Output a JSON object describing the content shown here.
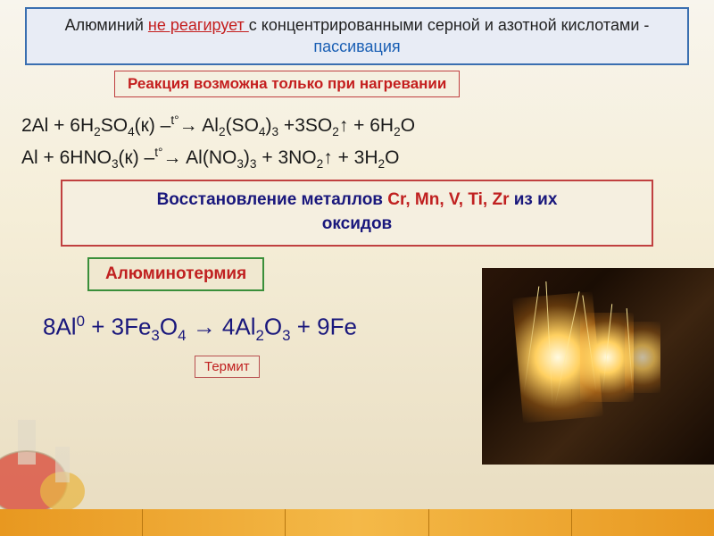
{
  "title_box": {
    "border_color": "#3a6fb0",
    "bg_color": "#e8ecf5",
    "text_color": "#222222",
    "prefix": "Алюминий ",
    "highlight": "не реагирует ",
    "highlight_color": "#c41e1e",
    "mid": "с концентрированными серной и азотной кислотами - ",
    "suffix": "пассивация",
    "suffix_color": "#1a5fb4"
  },
  "sub_box": {
    "border_color": "#c04040",
    "bg_color": "#f5f0e0",
    "text_color": "#c41e1e",
    "text": "Реакция возможна только при нагревании"
  },
  "eq1": {
    "color": "#1a1a1a",
    "text_html": "2Al + 6H<sub>2</sub>SO<sub>4</sub>(к) –<sup>t°</sup>→ Al<sub>2</sub>(SO<sub>4</sub>)<sub>3</sub> +3SO<sub>2</sub>↑ + 6H<sub>2</sub>O"
  },
  "eq2": {
    "color": "#1a1a1a",
    "text_html": "Al + 6HNO<sub>3</sub>(к) –<sup>t°</sup>→  Al(NO<sub>3</sub>)<sub>3</sub> + 3NO<sub>2</sub>↑ + 3H<sub>2</sub>O"
  },
  "mid_box": {
    "border_color": "#c04040",
    "bg_color": "#f5efe0",
    "line1_prefix": "Восстановление металлов ",
    "line1_prefix_color": "#19177c",
    "metals": "Cr, Mn, V, Ti, Zr",
    "metals_color": "#c02020",
    "line1_suffix": " из их",
    "line2": "оксидов",
    "suffix_color": "#19177c"
  },
  "thermite_label": {
    "border_color": "#3a8f3a",
    "bg_color": "#f0e8d0",
    "text": "Алюминотермия",
    "text_color": "#c02020"
  },
  "eq3": {
    "color": "#19177c",
    "text_html": "8Al<sup>0</sup> + 3Fe<sub>3</sub>O<sub>4</sub>  →   4Al<sub>2</sub>O<sub>3</sub> + 9Fe"
  },
  "termite_box": {
    "border_color": "#b85050",
    "bg_color": "#f2ead5",
    "text": "Термит",
    "text_color": "#c02020"
  },
  "photo": {
    "bg_dark": "#1a0d04",
    "spark_color": "#ffd060"
  },
  "button_bar": {
    "gradient_from": "#e89820",
    "gradient_to": "#f4b948",
    "segments": 5
  },
  "flask_colors": {
    "glass": "#d8d4c8",
    "liquid1": "#d84030",
    "liquid2": "#e8b030"
  }
}
